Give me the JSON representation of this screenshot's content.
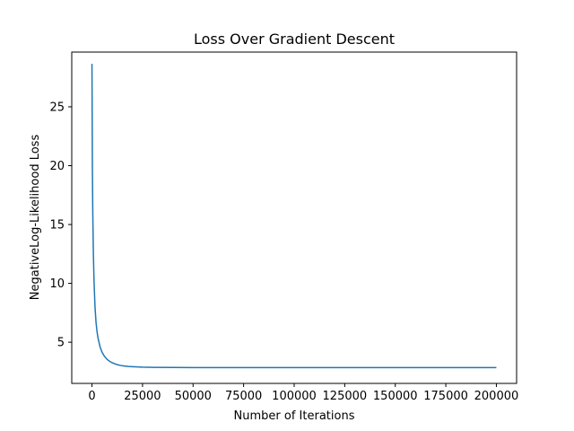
{
  "chart_data": {
    "type": "line",
    "title": "Loss Over Gradient Descent",
    "xlabel": "Number of Iterations",
    "ylabel": "NegativeLog-Likelihood  Loss",
    "xlim": [
      -10000,
      210000
    ],
    "ylim": [
      1.5,
      29.65
    ],
    "x_ticks": [
      0,
      25000,
      50000,
      75000,
      100000,
      125000,
      150000,
      175000,
      200000
    ],
    "x_tick_labels": [
      "0",
      "25000",
      "50000",
      "75000",
      "100000",
      "125000",
      "150000",
      "175000",
      "200000"
    ],
    "y_ticks": [
      5,
      10,
      15,
      20,
      25
    ],
    "y_tick_labels": [
      "5",
      "10",
      "15",
      "20",
      "25"
    ],
    "grid": false,
    "line_color": "#1f77b4",
    "series": [
      {
        "x": [
          0,
          200,
          400,
          700,
          1000,
          1500,
          2000,
          2500,
          3000,
          4000,
          5000,
          6000,
          7000,
          8000,
          9000,
          10000,
          12000,
          14000,
          16000,
          18000,
          20000,
          25000,
          30000,
          40000,
          50000,
          75000,
          100000,
          125000,
          150000,
          175000,
          200000
        ],
        "values": [
          28.65,
          20.0,
          16.0,
          12.5,
          10.3,
          8.0,
          6.7,
          5.9,
          5.35,
          4.6,
          4.15,
          3.85,
          3.62,
          3.47,
          3.35,
          3.26,
          3.12,
          3.03,
          2.98,
          2.94,
          2.92,
          2.88,
          2.86,
          2.85,
          2.84,
          2.84,
          2.84,
          2.84,
          2.84,
          2.84,
          2.84
        ]
      }
    ]
  }
}
